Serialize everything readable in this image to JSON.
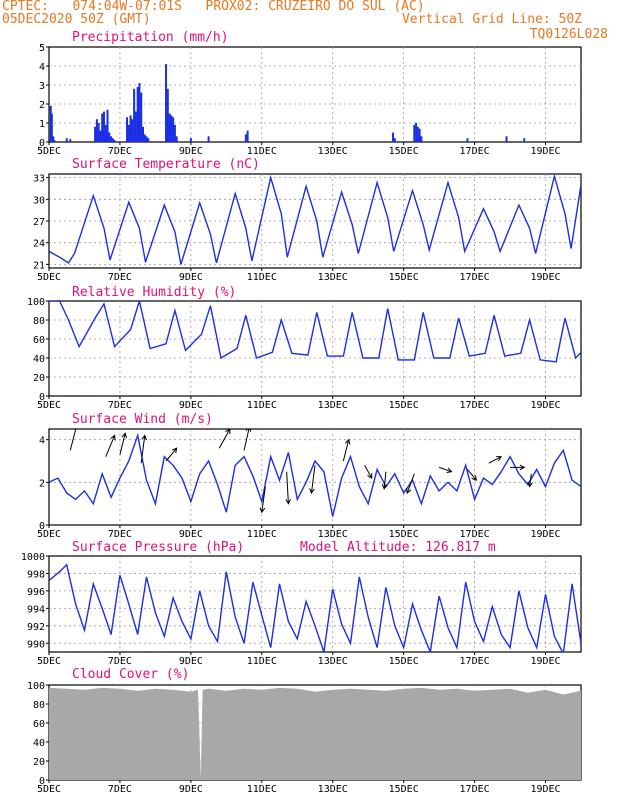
{
  "header": {
    "line1": "CPTEC:   074:04W-07:01S   PROX02: CRUZEIRO DO SUL (AC)",
    "date": "05DEC2020 50Z (GMT)",
    "grid_note": "Vertical Grid Line: 50Z",
    "code": "TQ0126L028"
  },
  "colors": {
    "header": "#e87722",
    "title": "#e0107a",
    "line": "#1a2fe6",
    "bar": "#1a2fe6",
    "cloud": "#a8a8a8",
    "grid": "#9a9a9a"
  },
  "x_ticks": [
    "5DEC",
    "7DEC",
    "9DEC",
    "11DEC",
    "13DEC",
    "15DEC",
    "17DEC",
    "19DEC"
  ],
  "panels": {
    "precip": {
      "title": "Precipitation (mm/h)",
      "y_ticks": [
        "0",
        "1",
        "2",
        "3",
        "4",
        "5"
      ]
    },
    "temp": {
      "title": "Surface Temperature (nC)",
      "y_ticks": [
        "21",
        "24",
        "27",
        "30",
        "33"
      ]
    },
    "rh": {
      "title": "Relative Humidity (%)",
      "y_ticks": [
        "0",
        "20",
        "40",
        "60",
        "80",
        "100"
      ]
    },
    "wind": {
      "title": "Surface Wind (m/s)",
      "y_ticks": [
        "0",
        "2",
        "4"
      ]
    },
    "pres": {
      "title": "Surface Pressure (hPa)",
      "altitude": "Model Altitude: 126.817 m",
      "y_ticks": [
        "990",
        "992",
        "994",
        "996",
        "998",
        "1000"
      ]
    },
    "cloud": {
      "title": "Cloud Cover (%)",
      "y_ticks": [
        "0",
        "20",
        "40",
        "60",
        "80",
        "100"
      ]
    }
  },
  "chart_data": [
    {
      "type": "bar",
      "title": "Precipitation (mm/h)",
      "ylim": [
        0,
        5
      ],
      "x_unit": "days since 5DEC 00Z",
      "x": [
        0.05,
        0.08,
        0.12,
        0.15,
        0.5,
        0.6,
        1.3,
        1.35,
        1.4,
        1.45,
        1.5,
        1.55,
        1.6,
        1.65,
        1.7,
        1.75,
        1.8,
        1.85,
        2.2,
        2.25,
        2.3,
        2.35,
        2.4,
        2.45,
        2.5,
        2.55,
        2.6,
        2.65,
        2.7,
        2.75,
        2.8,
        3.3,
        3.35,
        3.4,
        3.45,
        3.5,
        3.55,
        3.6,
        4.0,
        4.5,
        5.55,
        5.6,
        9.7,
        9.75,
        10.3,
        10.35,
        10.4,
        10.45,
        10.5,
        11.8,
        12.9,
        13.4
      ],
      "values": [
        1.9,
        1.5,
        0.3,
        0.1,
        0.2,
        0.15,
        0.8,
        1.2,
        1.0,
        0.6,
        1.5,
        1.6,
        0.9,
        1.7,
        0.5,
        0.3,
        0.2,
        0.1,
        1.3,
        0.9,
        1.4,
        1.2,
        2.8,
        1.6,
        2.9,
        3.1,
        2.6,
        0.8,
        0.4,
        0.3,
        0.2,
        4.1,
        2.8,
        1.5,
        1.4,
        1.3,
        0.9,
        0.3,
        0.2,
        0.3,
        0.4,
        0.6,
        0.5,
        0.2,
        0.9,
        1.0,
        0.8,
        0.7,
        0.3,
        0.2,
        0.3,
        0.2
      ]
    },
    {
      "type": "line",
      "title": "Surface Temperature (nC)",
      "ylim": [
        20.5,
        33.5
      ],
      "x": [
        0,
        0.3,
        0.55,
        0.72,
        1.25,
        1.55,
        1.72,
        2.25,
        2.55,
        2.72,
        3.25,
        3.55,
        3.72,
        4.25,
        4.55,
        4.72,
        5.25,
        5.55,
        5.72,
        6.25,
        6.55,
        6.72,
        7.25,
        7.55,
        7.72,
        8.25,
        8.55,
        8.72,
        9.25,
        9.55,
        9.72,
        10.25,
        10.55,
        10.72,
        11.25,
        11.55,
        11.72,
        12.25,
        12.55,
        12.72,
        13.25,
        13.55,
        13.72,
        14.25,
        14.55,
        14.72,
        15.0
      ],
      "values": [
        22.8,
        22.0,
        21.2,
        22.5,
        30.5,
        26.0,
        21.6,
        29.6,
        26.0,
        21.3,
        29.2,
        25.5,
        21.0,
        29.5,
        25.2,
        21.2,
        30.8,
        26.0,
        21.5,
        33.0,
        28.0,
        22.0,
        31.8,
        27.0,
        22.0,
        31.0,
        26.5,
        22.5,
        32.3,
        27.5,
        22.8,
        31.2,
        26.5,
        23.0,
        32.3,
        27.5,
        22.8,
        28.7,
        25.5,
        22.8,
        29.2,
        26.0,
        22.5,
        33.2,
        28.0,
        23.2,
        32.0
      ]
    },
    {
      "type": "line",
      "title": "Relative Humidity (%)",
      "ylim": [
        0,
        100
      ],
      "x": [
        0,
        0.3,
        0.55,
        0.85,
        1.3,
        1.55,
        1.85,
        2.3,
        2.55,
        2.85,
        3.3,
        3.55,
        3.85,
        4.3,
        4.55,
        4.85,
        5.3,
        5.55,
        5.85,
        6.3,
        6.55,
        6.85,
        7.3,
        7.55,
        7.85,
        8.3,
        8.55,
        8.85,
        9.3,
        9.55,
        9.85,
        10.3,
        10.55,
        10.85,
        11.3,
        11.55,
        11.85,
        12.3,
        12.55,
        12.85,
        13.3,
        13.55,
        13.85,
        14.3,
        14.55,
        14.85,
        15.0
      ],
      "values": [
        100,
        100,
        80,
        52,
        82,
        97,
        52,
        70,
        100,
        50,
        55,
        90,
        48,
        65,
        95,
        40,
        50,
        85,
        40,
        46,
        80,
        45,
        43,
        88,
        42,
        42,
        88,
        40,
        40,
        92,
        38,
        38,
        88,
        40,
        40,
        82,
        42,
        45,
        85,
        42,
        45,
        80,
        38,
        36,
        82,
        40,
        46
      ]
    },
    {
      "type": "line",
      "title": "Surface Wind (m/s)",
      "ylim": [
        0,
        4.5
      ],
      "x": [
        0,
        0.25,
        0.5,
        0.75,
        1.0,
        1.25,
        1.5,
        1.75,
        2.0,
        2.25,
        2.5,
        2.75,
        3.0,
        3.25,
        3.5,
        3.75,
        4.0,
        4.25,
        4.5,
        4.75,
        5.0,
        5.25,
        5.5,
        5.75,
        6.0,
        6.25,
        6.5,
        6.75,
        7.0,
        7.25,
        7.5,
        7.75,
        8.0,
        8.25,
        8.5,
        8.75,
        9.0,
        9.25,
        9.5,
        9.75,
        10.0,
        10.25,
        10.5,
        10.75,
        11.0,
        11.25,
        11.5,
        11.75,
        12.0,
        12.25,
        12.5,
        12.75,
        13.0,
        13.25,
        13.5,
        13.75,
        14.0,
        14.25,
        14.5,
        14.75,
        15.0
      ],
      "values": [
        2.0,
        2.2,
        1.5,
        1.2,
        1.6,
        1.0,
        2.4,
        1.3,
        2.2,
        3.0,
        4.2,
        2.1,
        1.0,
        3.2,
        2.8,
        2.2,
        1.1,
        2.4,
        3.0,
        1.9,
        0.6,
        2.8,
        3.2,
        2.3,
        1.1,
        3.2,
        2.1,
        3.4,
        1.2,
        2.0,
        3.0,
        2.5,
        0.4,
        2.2,
        3.2,
        1.8,
        1.0,
        2.6,
        1.8,
        2.4,
        1.5,
        2.1,
        1.0,
        2.3,
        1.6,
        2.0,
        1.6,
        2.8,
        1.2,
        2.2,
        1.9,
        2.5,
        3.2,
        2.4,
        1.9,
        2.6,
        1.8,
        2.9,
        3.5,
        2.1,
        1.8
      ],
      "arrows": [
        [
          0.6,
          3.5,
          0.4,
          1.3
        ],
        [
          1.6,
          3.2,
          0.5,
          1.0
        ],
        [
          2.0,
          3.3,
          0.3,
          1.0
        ],
        [
          2.6,
          2.9,
          0.2,
          1.3
        ],
        [
          3.3,
          3.0,
          0.6,
          0.6
        ],
        [
          4.8,
          3.6,
          0.6,
          0.9
        ],
        [
          5.5,
          3.5,
          0.3,
          1.1
        ],
        [
          6.1,
          1.8,
          -0.2,
          -1.2
        ],
        [
          6.7,
          2.5,
          0.1,
          -1.5
        ],
        [
          7.5,
          2.8,
          -0.2,
          -1.3
        ],
        [
          8.3,
          3.0,
          0.3,
          1.0
        ],
        [
          8.9,
          2.8,
          0.4,
          -0.6
        ],
        [
          9.5,
          2.5,
          -0.1,
          -0.8
        ],
        [
          10.3,
          2.4,
          -0.4,
          -0.9
        ],
        [
          11.0,
          2.7,
          0.7,
          -0.2
        ],
        [
          11.8,
          2.6,
          0.5,
          -0.5
        ],
        [
          12.4,
          2.9,
          0.7,
          0.3
        ],
        [
          13.0,
          2.7,
          0.8,
          0.0
        ],
        [
          13.6,
          2.4,
          -0.1,
          -0.6
        ]
      ]
    },
    {
      "type": "line",
      "title": "Surface Pressure (hPa)",
      "ylim": [
        989,
        1000
      ],
      "x": [
        0,
        0.3,
        0.5,
        0.75,
        1.0,
        1.25,
        1.5,
        1.75,
        2.0,
        2.25,
        2.5,
        2.75,
        3.0,
        3.25,
        3.5,
        3.75,
        4.0,
        4.25,
        4.5,
        4.75,
        5.0,
        5.25,
        5.5,
        5.75,
        6.0,
        6.25,
        6.5,
        6.75,
        7.0,
        7.25,
        7.5,
        7.75,
        8.0,
        8.25,
        8.5,
        8.75,
        9.0,
        9.25,
        9.5,
        9.75,
        10.0,
        10.25,
        10.5,
        10.75,
        11.0,
        11.25,
        11.5,
        11.75,
        12.0,
        12.25,
        12.5,
        12.75,
        13.0,
        13.25,
        13.5,
        13.75,
        14.0,
        14.25,
        14.5,
        14.75,
        15.0
      ],
      "values": [
        997.2,
        998.2,
        999.0,
        994.5,
        991.5,
        996.8,
        994.0,
        991.0,
        997.8,
        994.5,
        991.0,
        997.6,
        993.5,
        990.8,
        995.2,
        992.5,
        990.5,
        996.0,
        992.0,
        990.2,
        998.2,
        993.0,
        990.0,
        997.0,
        993.2,
        989.5,
        996.8,
        992.5,
        990.5,
        994.8,
        992.0,
        989.0,
        996.2,
        992.2,
        990.0,
        997.6,
        993.0,
        989.5,
        996.4,
        992.0,
        989.5,
        994.5,
        991.5,
        989.0,
        995.4,
        991.8,
        989.5,
        997.0,
        992.5,
        990.2,
        994.2,
        991.0,
        989.5,
        996.0,
        991.8,
        989.5,
        995.6,
        990.8,
        988.8,
        996.8,
        990.0
      ]
    },
    {
      "type": "area",
      "title": "Cloud Cover (%)",
      "ylim": [
        0,
        100
      ],
      "x": [
        0,
        0.5,
        1.0,
        1.5,
        2.0,
        2.5,
        3.0,
        3.5,
        4.0,
        4.2,
        4.28,
        4.33,
        4.5,
        5.0,
        5.5,
        6.0,
        6.5,
        7.0,
        7.5,
        8.0,
        8.5,
        9.0,
        9.5,
        10.0,
        10.5,
        11.0,
        11.5,
        12.0,
        12.5,
        13.0,
        13.5,
        14.0,
        14.5,
        14.9,
        15.0
      ],
      "values": [
        97,
        96,
        95,
        97,
        96,
        94,
        96,
        95,
        93,
        95,
        2,
        95,
        96,
        94,
        96,
        95,
        97,
        96,
        93,
        95,
        96,
        95,
        94,
        96,
        97,
        95,
        96,
        94,
        95,
        96,
        92,
        95,
        90,
        93,
        95
      ]
    }
  ]
}
